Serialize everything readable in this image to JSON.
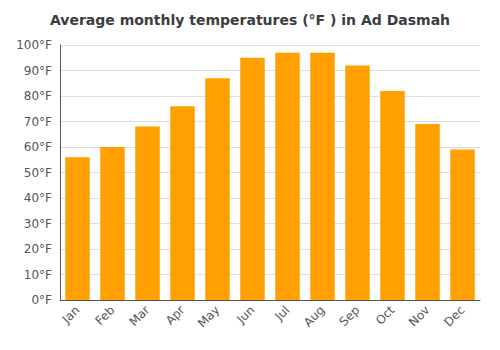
{
  "chart_data": {
    "type": "bar",
    "title": "Average monthly temperatures (°F ) in Ad Dasmah",
    "categories": [
      "Jan",
      "Feb",
      "Mar",
      "Apr",
      "May",
      "Jun",
      "Jul",
      "Aug",
      "Sep",
      "Oct",
      "Nov",
      "Dec"
    ],
    "values": [
      56,
      60,
      68,
      76,
      87,
      95,
      97,
      97,
      92,
      82,
      69,
      59
    ],
    "color": "#FFA000",
    "ylim": [
      0,
      100
    ],
    "yticks": [
      {
        "value": 0,
        "label": "0°F"
      },
      {
        "value": 10,
        "label": "10°F"
      },
      {
        "value": 20,
        "label": "20°F"
      },
      {
        "value": 30,
        "label": "30°F"
      },
      {
        "value": 40,
        "label": "40°F"
      },
      {
        "value": 50,
        "label": "50°F"
      },
      {
        "value": 60,
        "label": "60°F"
      },
      {
        "value": 70,
        "label": "70°F"
      },
      {
        "value": 80,
        "label": "80°F"
      },
      {
        "value": 90,
        "label": "90°F"
      },
      {
        "value": 100,
        "label": "100°F"
      }
    ],
    "grid": true
  }
}
